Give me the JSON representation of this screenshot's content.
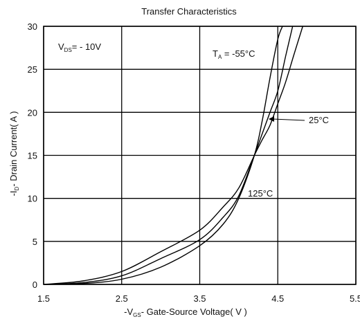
{
  "chart_data": {
    "type": "line",
    "title": "Transfer Characteristics",
    "xlabel": "-Vₑₛ- Gate-Source Voltage( V )",
    "xlabel_parts": {
      "prefix": "-V",
      "sub": "GS",
      "rest": "- Gate-Source Voltage( V )"
    },
    "ylabel_parts": {
      "prefix": "-I",
      "sub": "D",
      "rest": "- Drain Current( A )"
    },
    "xlim": [
      1.5,
      5.5
    ],
    "ylim": [
      0,
      30
    ],
    "x_ticks": [
      "1.5",
      "2.5",
      "3.5",
      "4.5",
      "5.5"
    ],
    "y_ticks": [
      "0",
      "5",
      "10",
      "15",
      "20",
      "25",
      "30"
    ],
    "grid": true,
    "condition": {
      "prefix": "V",
      "sub": "DS",
      "rest": "= - 10V"
    },
    "annotations": [
      {
        "prefix": "T",
        "sub": "A",
        "rest": " = -55°C"
      },
      {
        "text": "25°C"
      },
      {
        "text": "125°C"
      }
    ],
    "series": [
      {
        "x": [
          1.5,
          2.0,
          2.5,
          3.0,
          3.5,
          3.8,
          4.0,
          4.2,
          4.3,
          4.4,
          4.5,
          4.56
        ],
        "y": [
          0,
          0.1,
          0.6,
          2.0,
          4.5,
          7.0,
          10.0,
          15.0,
          19.0,
          24.0,
          28.5,
          30
        ]
      },
      {
        "x": [
          1.5,
          2.0,
          2.5,
          3.0,
          3.5,
          3.8,
          4.0,
          4.2,
          4.3,
          4.4,
          4.5,
          4.6,
          4.69
        ],
        "y": [
          0,
          0.2,
          1.0,
          3.0,
          5.2,
          7.8,
          10.3,
          15.0,
          17.5,
          20.0,
          22.5,
          26.5,
          30
        ]
      },
      {
        "x": [
          1.5,
          2.0,
          2.5,
          3.0,
          3.5,
          3.8,
          4.0,
          4.2,
          4.3,
          4.4,
          4.5,
          4.6,
          4.7,
          4.82
        ],
        "y": [
          0,
          0.4,
          1.5,
          3.8,
          6.3,
          9.0,
          11.2,
          15.0,
          16.8,
          18.5,
          21.0,
          23.5,
          26.5,
          30
        ]
      }
    ]
  }
}
